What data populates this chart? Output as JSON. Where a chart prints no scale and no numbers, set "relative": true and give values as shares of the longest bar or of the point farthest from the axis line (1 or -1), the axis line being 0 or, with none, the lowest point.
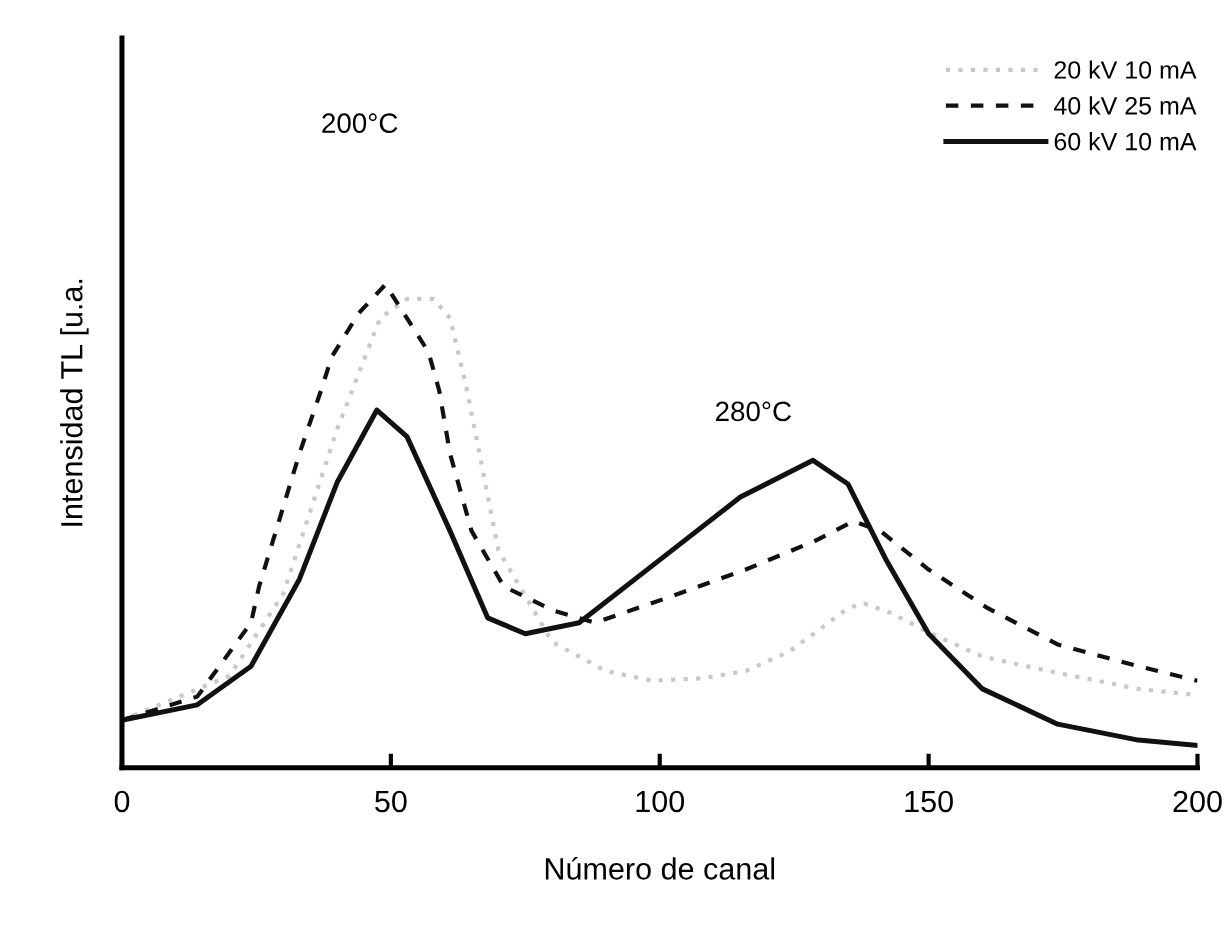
{
  "chart_data": {
    "type": "line",
    "relative": true,
    "xlabel": "Número de canal",
    "ylabel": "Intensidad TL [u.a.",
    "xlim": [
      0,
      200
    ],
    "xticks": [
      0,
      50,
      100,
      150,
      200
    ],
    "legend": "top right",
    "grid": false,
    "marker": "none",
    "annotations": [
      "200°C",
      "280°C"
    ],
    "series": [
      {
        "name": "20 kV 10 mA",
        "color": "#c8c8c8",
        "line_style": "dotted",
        "x": [
          0,
          20,
          30,
          40,
          48,
          53,
          58,
          61,
          64,
          70,
          80,
          90,
          98.5,
          108,
          116,
          124,
          129,
          135,
          138,
          143,
          150,
          160,
          174,
          189,
          200
        ],
        "values": [
          0.098,
          0.19,
          0.36,
          0.7,
          0.93,
          0.97,
          0.97,
          0.93,
          0.79,
          0.45,
          0.26,
          0.2,
          0.18,
          0.185,
          0.2,
          0.24,
          0.28,
          0.33,
          0.34,
          0.32,
          0.28,
          0.23,
          0.196,
          0.163,
          0.15
        ]
      },
      {
        "name": "40 kV 25 mA",
        "color": "#111111",
        "line_style": "dashed",
        "x": [
          0,
          14,
          24,
          25.5,
          33,
          37,
          39,
          44,
          49,
          57,
          59,
          61,
          65,
          71,
          80,
          88,
          101,
          116,
          129,
          136,
          141,
          150,
          161,
          174,
          189,
          200
        ],
        "values": [
          0.098,
          0.147,
          0.3,
          0.375,
          0.65,
          0.78,
          0.85,
          0.94,
          1.0,
          0.86,
          0.78,
          0.65,
          0.49,
          0.375,
          0.326,
          0.3,
          0.35,
          0.41,
          0.47,
          0.51,
          0.49,
          0.41,
          0.33,
          0.255,
          0.21,
          0.18
        ]
      },
      {
        "name": "60 kV 10 mA",
        "color": "#111111",
        "line_style": "solid",
        "x": [
          0,
          14,
          24,
          33,
          40,
          47.4,
          53,
          61,
          68,
          75,
          85,
          100,
          115,
          128.5,
          135,
          142,
          150,
          160,
          174,
          189,
          200
        ],
        "values": [
          0.098,
          0.13,
          0.21,
          0.39,
          0.59,
          0.74,
          0.685,
          0.49,
          0.31,
          0.277,
          0.3,
          0.43,
          0.56,
          0.636,
          0.587,
          0.432,
          0.277,
          0.163,
          0.09,
          0.057,
          0.046
        ]
      }
    ]
  }
}
